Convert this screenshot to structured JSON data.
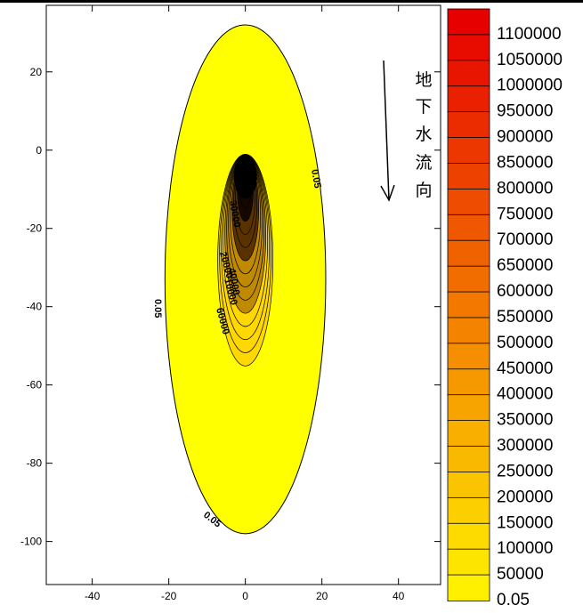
{
  "chart_data": {
    "type": "contour",
    "title": "",
    "xlabel": "",
    "ylabel": "",
    "xlim": [
      -52,
      51
    ],
    "ylim": [
      -111,
      37
    ],
    "x_ticks": [
      "-40",
      "-20",
      "0",
      "20",
      "40"
    ],
    "y_ticks": [
      "20",
      "0",
      "-20",
      "-40",
      "-60",
      "-80",
      "-100"
    ],
    "plume": {
      "outer_contour": 0.05,
      "center_x": 0,
      "top_y": 32,
      "bottom_y": -98,
      "half_width": 21,
      "peak_y": -4,
      "peak_value": 1100000
    },
    "contour_labels": [
      "0.05",
      "0.05",
      "0.05",
      "30000",
      "40000",
      "20000",
      "10000",
      "60000"
    ],
    "annotation": {
      "text_chars": [
        "地",
        "下",
        "水",
        "流",
        "向"
      ],
      "arrow_direction": "down"
    },
    "colorbar": {
      "levels": [
        "1100000",
        "1050000",
        "1000000",
        "950000",
        "900000",
        "850000",
        "800000",
        "750000",
        "700000",
        "650000",
        "600000",
        "550000",
        "500000",
        "450000",
        "400000",
        "350000",
        "300000",
        "250000",
        "200000",
        "150000",
        "100000",
        "50000",
        "0.05"
      ],
      "color_low": "#ffff00",
      "color_high": "#e60000"
    },
    "colors": {
      "plume_fill": "#ffff00",
      "core": "#000000"
    }
  }
}
